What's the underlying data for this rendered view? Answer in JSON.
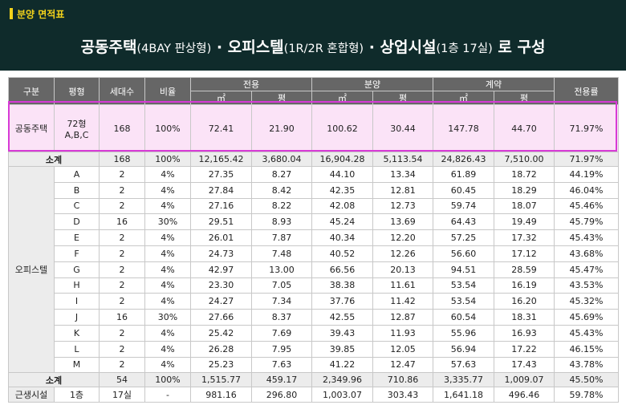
{
  "header": {
    "tag": "분양 면적표",
    "title_parts": [
      {
        "text": "공동주택",
        "small": false
      },
      {
        "text": "(4BAY 판상형)",
        "small": true
      },
      {
        "text": " · 오피스텔",
        "small": false
      },
      {
        "text": "(1R/2R 혼합형)",
        "small": true
      },
      {
        "text": " · 상업시설",
        "small": false
      },
      {
        "text": "(1층 17실)",
        "small": true
      },
      {
        "text": " 로 구성",
        "small": false
      }
    ]
  },
  "table": {
    "headers": {
      "gubun": "구분",
      "pyeonghyeong": "평형",
      "sedaesu": "세대수",
      "biyul": "비율",
      "jeonyong": "전용",
      "bunyang": "분양",
      "gyeyak": "계약",
      "jeonyongryul": "전용률",
      "m2": "㎡",
      "pyeong": "평"
    },
    "housing": {
      "gubun": "공동주택",
      "type": "72형\nA,B,C",
      "units": "168",
      "ratio": "100%",
      "values": [
        "72.41",
        "21.90",
        "100.62",
        "30.44",
        "147.78",
        "44.70",
        "71.97%"
      ]
    },
    "housing_subtotal": {
      "label": "소계",
      "units": "168",
      "ratio": "100%",
      "values": [
        "12,165.42",
        "3,680.04",
        "16,904.28",
        "5,113.54",
        "24,826.43",
        "7,510.00",
        "71.97%"
      ]
    },
    "office_label": "오피스텔",
    "office_rows": [
      {
        "type": "A",
        "units": "2",
        "ratio": "4%",
        "values": [
          "27.35",
          "8.27",
          "44.10",
          "13.34",
          "61.89",
          "18.72",
          "44.19%"
        ]
      },
      {
        "type": "B",
        "units": "2",
        "ratio": "4%",
        "values": [
          "27.84",
          "8.42",
          "42.35",
          "12.81",
          "60.45",
          "18.29",
          "46.04%"
        ]
      },
      {
        "type": "C",
        "units": "2",
        "ratio": "4%",
        "values": [
          "27.16",
          "8.22",
          "42.08",
          "12.73",
          "59.74",
          "18.07",
          "45.46%"
        ]
      },
      {
        "type": "D",
        "units": "16",
        "ratio": "30%",
        "values": [
          "29.51",
          "8.93",
          "45.24",
          "13.69",
          "64.43",
          "19.49",
          "45.79%"
        ]
      },
      {
        "type": "E",
        "units": "2",
        "ratio": "4%",
        "values": [
          "26.01",
          "7.87",
          "40.34",
          "12.20",
          "57.25",
          "17.32",
          "45.43%"
        ]
      },
      {
        "type": "F",
        "units": "2",
        "ratio": "4%",
        "values": [
          "24.73",
          "7.48",
          "40.52",
          "12.26",
          "56.60",
          "17.12",
          "43.68%"
        ]
      },
      {
        "type": "G",
        "units": "2",
        "ratio": "4%",
        "values": [
          "42.97",
          "13.00",
          "66.56",
          "20.13",
          "94.51",
          "28.59",
          "45.47%"
        ]
      },
      {
        "type": "H",
        "units": "2",
        "ratio": "4%",
        "values": [
          "23.30",
          "7.05",
          "38.38",
          "11.61",
          "53.54",
          "16.19",
          "43.53%"
        ]
      },
      {
        "type": "I",
        "units": "2",
        "ratio": "4%",
        "values": [
          "24.27",
          "7.34",
          "37.76",
          "11.42",
          "53.54",
          "16.20",
          "45.32%"
        ]
      },
      {
        "type": "J",
        "units": "16",
        "ratio": "30%",
        "values": [
          "27.66",
          "8.37",
          "42.55",
          "12.87",
          "60.54",
          "18.31",
          "45.69%"
        ]
      },
      {
        "type": "K",
        "units": "2",
        "ratio": "4%",
        "values": [
          "25.42",
          "7.69",
          "39.43",
          "11.93",
          "55.96",
          "16.93",
          "45.43%"
        ]
      },
      {
        "type": "L",
        "units": "2",
        "ratio": "4%",
        "values": [
          "26.28",
          "7.95",
          "39.85",
          "12.05",
          "56.94",
          "17.22",
          "46.15%"
        ]
      },
      {
        "type": "M",
        "units": "2",
        "ratio": "4%",
        "values": [
          "25.23",
          "7.63",
          "41.22",
          "12.47",
          "57.63",
          "17.43",
          "43.78%"
        ]
      }
    ],
    "office_subtotal": {
      "label": "소계",
      "units": "54",
      "ratio": "100%",
      "values": [
        "1,515.77",
        "459.17",
        "2,349.96",
        "710.86",
        "3,335.77",
        "1,009.07",
        "45.50%"
      ]
    },
    "commercial": {
      "gubun": "근생시설",
      "type": "1층",
      "units": "17실",
      "ratio": "-",
      "values": [
        "981.16",
        "296.80",
        "1,003.07",
        "303.43",
        "1,641.18",
        "496.46",
        "59.78%"
      ]
    }
  }
}
